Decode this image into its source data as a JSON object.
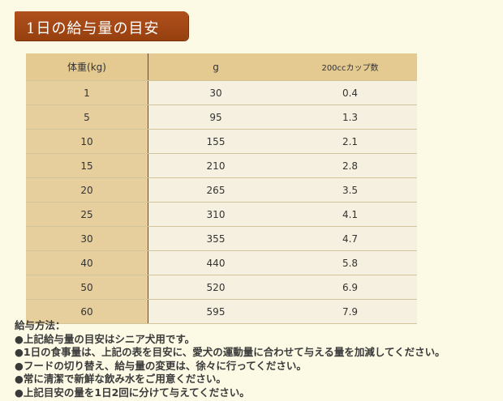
{
  "header": {
    "title": "1日の給与量の目安"
  },
  "table": {
    "columns": [
      "体重(kg)",
      "g",
      "200ccカップ数"
    ],
    "rows": [
      [
        1,
        30,
        0.4
      ],
      [
        5,
        95,
        1.3
      ],
      [
        10,
        155,
        2.1
      ],
      [
        15,
        210,
        2.8
      ],
      [
        20,
        265,
        3.5
      ],
      [
        25,
        310,
        4.1
      ],
      [
        30,
        355,
        4.7
      ],
      [
        40,
        440,
        5.8
      ],
      [
        50,
        520,
        6.9
      ],
      [
        60,
        595,
        7.9
      ]
    ]
  },
  "notes": {
    "title": "給与方法：",
    "items": [
      "●上記給与量の目安はシニア犬用です。",
      "●1日の食事量は、上記の表を目安に、愛犬の運動量に合わせて与える量を加減してください。",
      "●フードの切り替え、給与量の変更は、徐々に行ってください。",
      "●常に清潔で新鮮な飲み水をご用意ください。",
      "●上記目安の量を1日2回に分けて与えてください。"
    ]
  }
}
